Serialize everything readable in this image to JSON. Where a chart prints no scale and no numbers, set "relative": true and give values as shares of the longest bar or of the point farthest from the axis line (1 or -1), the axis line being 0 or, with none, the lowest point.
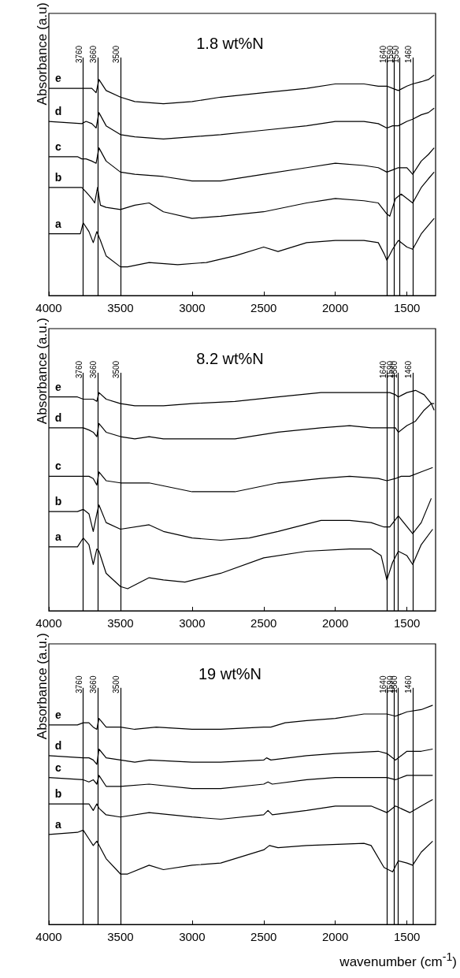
{
  "chart_data": [
    {
      "type": "line",
      "title": "1.8 wt%N",
      "ylabel": "Absorbance (a.u)",
      "relative": true,
      "xlim": [
        4000,
        1300
      ],
      "xticks": [
        4000,
        3500,
        3000,
        2500,
        2000,
        1500
      ],
      "tick_labels": "x",
      "marker": "none",
      "grid": false,
      "ref_lines": [
        {
          "axis": "x",
          "value": 3760,
          "label": "3760"
        },
        {
          "axis": "x",
          "value": 3660,
          "label": "3660"
        },
        {
          "axis": "x",
          "value": 3500,
          "label": "3500"
        },
        {
          "axis": "x",
          "value": 1640,
          "label": "1640"
        },
        {
          "axis": "x",
          "value": 1590,
          "label": "1590"
        },
        {
          "axis": "x",
          "value": 1550,
          "label": "1550"
        },
        {
          "axis": "x",
          "value": 1460,
          "label": "1460"
        }
      ],
      "series": [
        {
          "name": "e",
          "color": "#000000",
          "x": [
            4000,
            3800,
            3770,
            3740,
            3700,
            3670,
            3650,
            3600,
            3500,
            3400,
            3200,
            3000,
            2800,
            2500,
            2200,
            2000,
            1800,
            1700,
            1640,
            1600,
            1560,
            1500,
            1460,
            1400,
            1350,
            1310
          ],
          "values": [
            0.94,
            0.94,
            0.94,
            0.94,
            0.94,
            0.92,
            0.98,
            0.93,
            0.9,
            0.88,
            0.87,
            0.88,
            0.9,
            0.92,
            0.94,
            0.96,
            0.96,
            0.95,
            0.95,
            0.94,
            0.93,
            0.95,
            0.96,
            0.97,
            0.98,
            1
          ]
        },
        {
          "name": "d",
          "color": "#000000",
          "x": [
            4000,
            3770,
            3740,
            3700,
            3670,
            3650,
            3600,
            3500,
            3400,
            3200,
            3000,
            2800,
            2500,
            2200,
            2000,
            1800,
            1700,
            1640,
            1600,
            1560,
            1500,
            1460,
            1400,
            1350,
            1310
          ],
          "values": [
            0.79,
            0.78,
            0.79,
            0.78,
            0.76,
            0.83,
            0.77,
            0.73,
            0.72,
            0.71,
            0.72,
            0.73,
            0.75,
            0.77,
            0.79,
            0.79,
            0.78,
            0.76,
            0.77,
            0.77,
            0.79,
            0.8,
            0.82,
            0.83,
            0.85
          ]
        },
        {
          "name": "c",
          "color": "#000000",
          "x": [
            4000,
            3800,
            3770,
            3740,
            3700,
            3670,
            3650,
            3600,
            3500,
            3400,
            3200,
            3000,
            2800,
            2500,
            2200,
            2000,
            1800,
            1700,
            1640,
            1600,
            1560,
            1500,
            1460,
            1400,
            1350,
            1310
          ],
          "values": [
            0.63,
            0.63,
            0.62,
            0.62,
            0.61,
            0.6,
            0.67,
            0.61,
            0.56,
            0.55,
            0.54,
            0.52,
            0.52,
            0.55,
            0.58,
            0.6,
            0.59,
            0.58,
            0.56,
            0.57,
            0.58,
            0.58,
            0.55,
            0.61,
            0.64,
            0.67
          ]
        },
        {
          "name": "b",
          "color": "#000000",
          "x": [
            4000,
            3800,
            3770,
            3740,
            3700,
            3680,
            3660,
            3640,
            3600,
            3500,
            3400,
            3300,
            3200,
            3000,
            2800,
            2500,
            2200,
            2000,
            1800,
            1700,
            1640,
            1620,
            1580,
            1540,
            1460,
            1400,
            1350,
            1310
          ],
          "values": [
            0.49,
            0.49,
            0.49,
            0.47,
            0.44,
            0.42,
            0.49,
            0.41,
            0.4,
            0.39,
            0.41,
            0.42,
            0.38,
            0.35,
            0.36,
            0.38,
            0.42,
            0.44,
            0.43,
            0.42,
            0.37,
            0.36,
            0.44,
            0.46,
            0.42,
            0.49,
            0.53,
            0.56
          ]
        },
        {
          "name": "a",
          "color": "#000000",
          "x": [
            4000,
            3780,
            3760,
            3720,
            3690,
            3665,
            3640,
            3600,
            3500,
            3450,
            3300,
            3100,
            2900,
            2700,
            2500,
            2400,
            2200,
            2000,
            1800,
            1700,
            1660,
            1640,
            1600,
            1560,
            1500,
            1460,
            1400,
            1310
          ],
          "values": [
            0.28,
            0.28,
            0.33,
            0.29,
            0.24,
            0.29,
            0.25,
            0.18,
            0.13,
            0.13,
            0.15,
            0.14,
            0.15,
            0.18,
            0.22,
            0.2,
            0.24,
            0.25,
            0.25,
            0.24,
            0.19,
            0.16,
            0.21,
            0.25,
            0.22,
            0.21,
            0.28,
            0.35
          ]
        }
      ]
    },
    {
      "type": "line",
      "title": "8.2 wt%N",
      "ylabel": "Absorbance (a.u.)",
      "relative": true,
      "xlim": [
        4000,
        1300
      ],
      "xticks": [
        4000,
        3500,
        3000,
        2500,
        2000,
        1500
      ],
      "tick_labels": "x",
      "marker": "none",
      "grid": false,
      "ref_lines": [
        {
          "axis": "x",
          "value": 3760,
          "label": "3760"
        },
        {
          "axis": "x",
          "value": 3660,
          "label": "3660"
        },
        {
          "axis": "x",
          "value": 3500,
          "label": "3500"
        },
        {
          "axis": "x",
          "value": 1640,
          "label": "1640"
        },
        {
          "axis": "x",
          "value": 1590,
          "label": "1590"
        },
        {
          "axis": "x",
          "value": 1560,
          "label": "1560"
        },
        {
          "axis": "x",
          "value": 1460,
          "label": "1460"
        }
      ],
      "series": [
        {
          "name": "e",
          "color": "#000000",
          "x": [
            4000,
            3800,
            3760,
            3720,
            3690,
            3665,
            3650,
            3600,
            3500,
            3400,
            3200,
            3000,
            2700,
            2400,
            2100,
            1900,
            1750,
            1660,
            1620,
            1580,
            1560,
            1500,
            1440,
            1380,
            1330,
            1310
          ],
          "values": [
            0.97,
            0.97,
            0.96,
            0.96,
            0.96,
            0.95,
            0.99,
            0.96,
            0.94,
            0.93,
            0.93,
            0.94,
            0.95,
            0.97,
            0.99,
            0.99,
            0.99,
            0.99,
            0.99,
            0.98,
            0.97,
            0.99,
            1,
            0.98,
            0.94,
            0.91
          ]
        },
        {
          "name": "d",
          "color": "#000000",
          "x": [
            4000,
            3760,
            3720,
            3690,
            3665,
            3650,
            3600,
            3500,
            3400,
            3300,
            3200,
            3000,
            2700,
            2400,
            2100,
            1900,
            1750,
            1660,
            1620,
            1580,
            1560,
            1500,
            1440,
            1380,
            1330,
            1310
          ],
          "values": [
            0.83,
            0.83,
            0.82,
            0.81,
            0.79,
            0.85,
            0.81,
            0.79,
            0.78,
            0.79,
            0.78,
            0.78,
            0.78,
            0.81,
            0.83,
            0.84,
            0.83,
            0.83,
            0.83,
            0.83,
            0.81,
            0.84,
            0.86,
            0.91,
            0.94,
            0.94
          ]
        },
        {
          "name": "c",
          "color": "#000000",
          "x": [
            4000,
            3760,
            3720,
            3690,
            3665,
            3650,
            3600,
            3500,
            3300,
            3000,
            2700,
            2400,
            2100,
            1900,
            1700,
            1640,
            1580,
            1540,
            1480,
            1400,
            1320
          ],
          "values": [
            0.61,
            0.61,
            0.61,
            0.6,
            0.57,
            0.63,
            0.59,
            0.58,
            0.58,
            0.54,
            0.54,
            0.58,
            0.6,
            0.61,
            0.6,
            0.59,
            0.6,
            0.61,
            0.61,
            0.63,
            0.65
          ]
        },
        {
          "name": "b",
          "color": "#000000",
          "x": [
            4000,
            3800,
            3760,
            3720,
            3690,
            3665,
            3650,
            3600,
            3500,
            3300,
            3200,
            3000,
            2800,
            2600,
            2400,
            2100,
            1900,
            1750,
            1660,
            1620,
            1560,
            1460,
            1400,
            1330
          ],
          "values": [
            0.45,
            0.45,
            0.46,
            0.44,
            0.36,
            0.44,
            0.48,
            0.4,
            0.37,
            0.39,
            0.36,
            0.33,
            0.32,
            0.33,
            0.36,
            0.41,
            0.41,
            0.4,
            0.38,
            0.38,
            0.43,
            0.35,
            0.4,
            0.51
          ]
        },
        {
          "name": "a",
          "color": "#000000",
          "x": [
            4000,
            3800,
            3760,
            3720,
            3690,
            3665,
            3650,
            3600,
            3500,
            3450,
            3300,
            3200,
            3050,
            2800,
            2500,
            2200,
            1900,
            1750,
            1680,
            1640,
            1600,
            1560,
            1500,
            1460,
            1400,
            1320
          ],
          "values": [
            0.29,
            0.29,
            0.33,
            0.3,
            0.21,
            0.28,
            0.27,
            0.17,
            0.11,
            0.1,
            0.15,
            0.14,
            0.13,
            0.17,
            0.24,
            0.27,
            0.28,
            0.28,
            0.25,
            0.14,
            0.22,
            0.27,
            0.25,
            0.21,
            0.3,
            0.37
          ]
        }
      ]
    },
    {
      "type": "line",
      "title": "19 wt%N",
      "ylabel": "Absorbance (a.u.)",
      "xlabel": "wavenumber (cm$^{-1}$)",
      "relative": true,
      "xlim": [
        4000,
        1300
      ],
      "xticks": [
        4000,
        3500,
        3000,
        2500,
        2000,
        1500
      ],
      "tick_labels": "x",
      "marker": "none",
      "grid": false,
      "ref_lines": [
        {
          "axis": "x",
          "value": 3760,
          "label": "3760"
        },
        {
          "axis": "x",
          "value": 3660,
          "label": "3660"
        },
        {
          "axis": "x",
          "value": 3500,
          "label": "3500"
        },
        {
          "axis": "x",
          "value": 1640,
          "label": "1640"
        },
        {
          "axis": "x",
          "value": 1590,
          "label": "1590"
        },
        {
          "axis": "x",
          "value": 1560,
          "label": "1560"
        },
        {
          "axis": "x",
          "value": 1460,
          "label": "1460"
        }
      ],
      "series": [
        {
          "name": "e",
          "color": "#000000",
          "x": [
            4000,
            3800,
            3760,
            3720,
            3690,
            3665,
            3650,
            3600,
            3500,
            3400,
            3250,
            3000,
            2800,
            2500,
            2450,
            2350,
            2200,
            2000,
            1800,
            1640,
            1580,
            1500,
            1400,
            1320
          ],
          "values": [
            0.91,
            0.91,
            0.92,
            0.92,
            0.9,
            0.89,
            0.94,
            0.9,
            0.9,
            0.89,
            0.9,
            0.89,
            0.89,
            0.9,
            0.9,
            0.92,
            0.93,
            0.94,
            0.96,
            0.96,
            0.95,
            0.97,
            0.98,
            1
          ]
        },
        {
          "name": "d",
          "color": "#000000",
          "x": [
            4000,
            3760,
            3720,
            3690,
            3665,
            3650,
            3600,
            3500,
            3400,
            3300,
            3000,
            2800,
            2500,
            2480,
            2450,
            2200,
            2000,
            1700,
            1640,
            1580,
            1500,
            1400,
            1320
          ],
          "values": [
            0.77,
            0.76,
            0.76,
            0.75,
            0.73,
            0.8,
            0.76,
            0.75,
            0.74,
            0.75,
            0.74,
            0.74,
            0.75,
            0.76,
            0.75,
            0.77,
            0.78,
            0.79,
            0.78,
            0.75,
            0.79,
            0.79,
            0.8
          ]
        },
        {
          "name": "c",
          "color": "#000000",
          "x": [
            4000,
            3760,
            3720,
            3690,
            3665,
            3650,
            3600,
            3500,
            3300,
            3000,
            2800,
            2500,
            2470,
            2440,
            2200,
            2000,
            1700,
            1640,
            1580,
            1500,
            1400,
            1350,
            1320
          ],
          "values": [
            0.67,
            0.66,
            0.65,
            0.66,
            0.64,
            0.68,
            0.63,
            0.63,
            0.64,
            0.62,
            0.62,
            0.64,
            0.65,
            0.64,
            0.66,
            0.67,
            0.67,
            0.67,
            0.66,
            0.68,
            0.68,
            0.68,
            0.68
          ]
        },
        {
          "name": "b",
          "color": "#000000",
          "x": [
            4000,
            3760,
            3720,
            3690,
            3665,
            3650,
            3600,
            3500,
            3300,
            3000,
            2800,
            2500,
            2470,
            2440,
            2200,
            2000,
            1750,
            1640,
            1580,
            1480,
            1400,
            1320
          ],
          "values": [
            0.55,
            0.55,
            0.55,
            0.52,
            0.55,
            0.53,
            0.5,
            0.49,
            0.51,
            0.49,
            0.48,
            0.5,
            0.52,
            0.5,
            0.52,
            0.54,
            0.54,
            0.51,
            0.54,
            0.51,
            0.54,
            0.57
          ]
        },
        {
          "name": "a",
          "color": "#000000",
          "x": [
            4000,
            3800,
            3760,
            3720,
            3690,
            3665,
            3600,
            3500,
            3450,
            3300,
            3200,
            3000,
            2800,
            2500,
            2460,
            2400,
            2200,
            1800,
            1750,
            1660,
            1600,
            1560,
            1500,
            1460,
            1400,
            1320
          ],
          "values": [
            0.41,
            0.42,
            0.43,
            0.39,
            0.36,
            0.38,
            0.3,
            0.23,
            0.23,
            0.27,
            0.25,
            0.27,
            0.28,
            0.34,
            0.36,
            0.35,
            0.36,
            0.37,
            0.36,
            0.26,
            0.24,
            0.29,
            0.28,
            0.27,
            0.33,
            0.38
          ]
        }
      ]
    }
  ]
}
